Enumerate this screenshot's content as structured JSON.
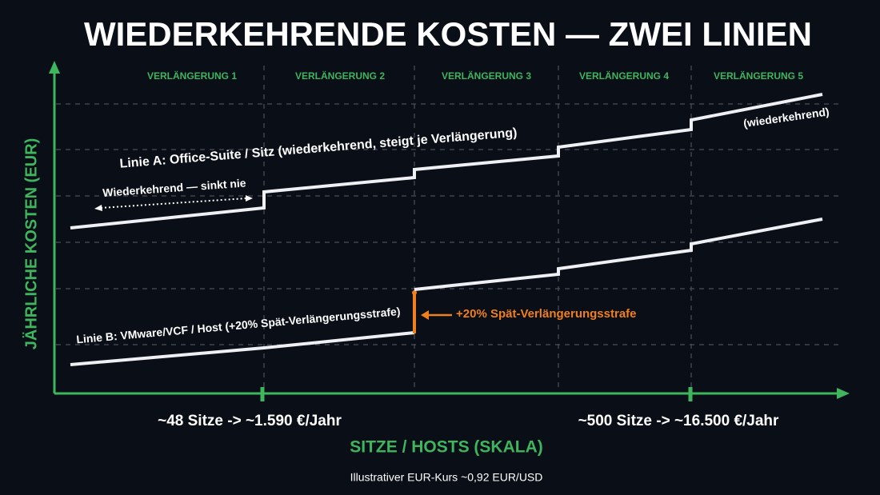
{
  "title": "WIEDERKEHRENDE KOSTEN — ZWEI LINIEN",
  "renewals": [
    "VERLÄNGERUNG 1",
    "VERLÄNGERUNG 2",
    "VERLÄNGERUNG 3",
    "VERLÄNGERUNG 4",
    "VERLÄNGERUNG 5"
  ],
  "line_a": {
    "label": "Linie A: Office-Suite / Sitz (wiederkehrend, steigt je Verlängerung)",
    "note": "Wiederkehrend — sinkt nie",
    "end_note": "(wiederkehrend)"
  },
  "line_b": {
    "label": "Linie B: VMware/VCF / Host (+20% Spät-Verlängerungsstrafe)",
    "penalty": "+20% Spät-Verlängerungsstrafe"
  },
  "x_markers": [
    "~48 Sitze -> ~1.590 €/Jahr",
    "~500 Sitze -> ~16.500 €/Jahr"
  ],
  "x_axis_label": "SITZE / HOSTS (SKALA)",
  "y_axis_label": "JÄHRLICHE KOSTEN (EUR)",
  "footnote": "Illustrativer EUR-Kurs ~0,92 EUR/USD"
}
